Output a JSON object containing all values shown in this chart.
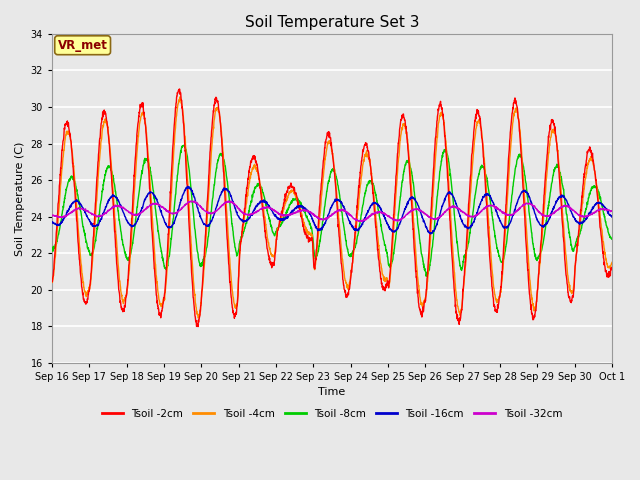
{
  "title": "Soil Temperature Set 3",
  "xlabel": "Time",
  "ylabel": "Soil Temperature (C)",
  "ylim": [
    16,
    34
  ],
  "yticks": [
    16,
    18,
    20,
    22,
    24,
    26,
    28,
    30,
    32,
    34
  ],
  "annotation_text": "VR_met",
  "annotation_color": "#8B0000",
  "annotation_bg": "#FFFF99",
  "annotation_edge": "#8B6914",
  "axes_bg": "#E8E8E8",
  "fig_bg": "#E8E8E8",
  "grid_color": "#FFFFFF",
  "series_colors": [
    "#FF0000",
    "#FF8C00",
    "#00CC00",
    "#0000CC",
    "#CC00CC"
  ],
  "series_labels": [
    "Tsoil -2cm",
    "Tsoil -4cm",
    "Tsoil -8cm",
    "Tsoil -16cm",
    "Tsoil -32cm"
  ],
  "n_days": 15,
  "points_per_day": 144,
  "start_day": 16
}
